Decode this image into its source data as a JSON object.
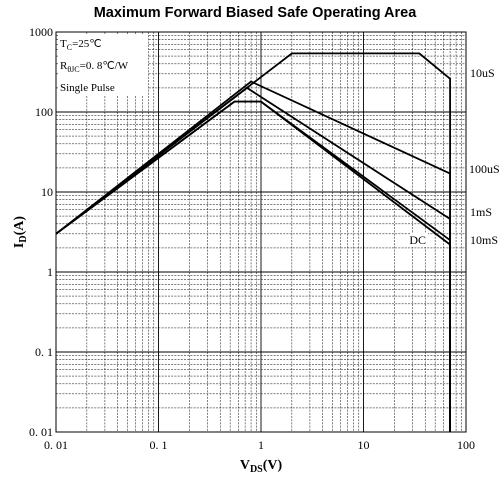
{
  "chart_data": {
    "type": "line",
    "title": "Maximum Forward Biased Safe Operating Area",
    "xlabel": {
      "main": "V",
      "sub": "DS",
      "unit": "(V)"
    },
    "ylabel": {
      "main": "I",
      "sub": "D",
      "unit": "(A)"
    },
    "x_scale": "log",
    "y_scale": "log",
    "xlim": [
      0.01,
      100
    ],
    "ylim": [
      0.01,
      1000
    ],
    "grid": true,
    "x_ticks": [
      "0. 01",
      "0. 1",
      "1",
      "10",
      "100"
    ],
    "y_ticks": [
      "0. 01",
      "0. 1",
      "1",
      "10",
      "100",
      "1000"
    ],
    "annotations": [
      {
        "main": "T",
        "sub": "C",
        "rest": "=25℃"
      },
      {
        "main": "R",
        "sub": "θJC",
        "rest": "=0. 8℃/W"
      },
      {
        "main": "Single Pulse",
        "sub": "",
        "rest": ""
      }
    ],
    "curve_labels": [
      "10uS",
      "100uS",
      "1mS",
      "10mS",
      "DC"
    ],
    "series": [
      {
        "name": "10uS",
        "points": [
          [
            0.01,
            3
          ],
          [
            2,
            540
          ],
          [
            35,
            540
          ],
          [
            70,
            260
          ],
          [
            70,
            0.01
          ]
        ]
      },
      {
        "name": "100uS",
        "points": [
          [
            0.01,
            3
          ],
          [
            0.8,
            240
          ],
          [
            70,
            17
          ],
          [
            70,
            0.01
          ]
        ]
      },
      {
        "name": "1mS",
        "points": [
          [
            0.01,
            3
          ],
          [
            0.73,
            200
          ],
          [
            70,
            4.6
          ],
          [
            70,
            0.01
          ]
        ]
      },
      {
        "name": "10mS",
        "points": [
          [
            0.01,
            3
          ],
          [
            0.55,
            135
          ],
          [
            1,
            135
          ],
          [
            70,
            2.5
          ],
          [
            70,
            0.01
          ]
        ]
      },
      {
        "name": "DC",
        "points": [
          [
            0.01,
            3
          ],
          [
            0.55,
            135
          ],
          [
            1,
            135
          ],
          [
            70,
            2.2
          ],
          [
            70,
            0.01
          ]
        ]
      }
    ]
  }
}
